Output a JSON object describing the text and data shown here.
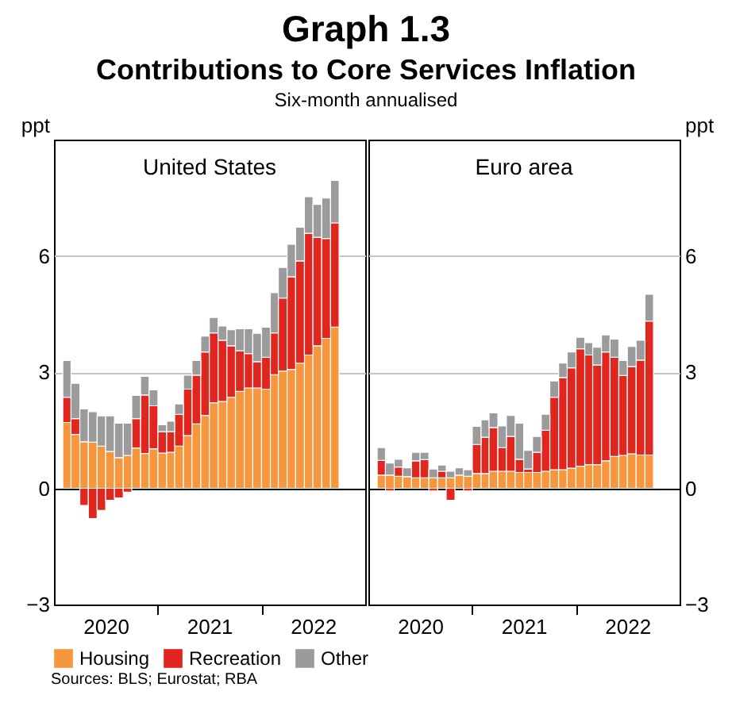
{
  "chart_data": [
    {
      "type": "bar",
      "title": "United States",
      "ylabel": "ppt",
      "stacked": true,
      "grid": "y",
      "legend": "bottom",
      "annotations": [
        "Graph 1.3",
        "Contributions to Core Services Inflation",
        "Six-month annualised",
        "Sources: BLS; Eurostat; RBA"
      ],
      "x": [
        "2020-02",
        "2020-03",
        "2020-04",
        "2020-05",
        "2020-06",
        "2020-07",
        "2020-08",
        "2020-09",
        "2020-10",
        "2020-11",
        "2020-12",
        "2021-01",
        "2021-02",
        "2021-03",
        "2021-04",
        "2021-05",
        "2021-06",
        "2021-07",
        "2021-08",
        "2021-09",
        "2021-10",
        "2021-11",
        "2021-12",
        "2022-01",
        "2022-02",
        "2022-03",
        "2022-04",
        "2022-05",
        "2022-06",
        "2022-07",
        "2022-08",
        "2022-09"
      ],
      "xlim": [
        "2020-01",
        "2023-01"
      ],
      "xticks": [
        {
          "value": "2020-07",
          "label": "2020"
        },
        {
          "value": "2021-01",
          "label": null
        },
        {
          "value": "2021-07",
          "label": "2021"
        },
        {
          "value": "2022-01",
          "label": null
        },
        {
          "value": "2022-07",
          "label": "2022"
        }
      ],
      "ylim": [
        -3,
        9
      ],
      "yticks": [
        -3,
        0,
        3,
        6
      ],
      "series": [
        {
          "name": "Housing",
          "color": "#f7963c",
          "values": [
            1.7,
            1.39,
            1.2,
            1.19,
            1.09,
            0.95,
            0.79,
            0.85,
            1.04,
            0.9,
            1.02,
            0.91,
            0.93,
            1.09,
            1.36,
            1.66,
            1.88,
            2.21,
            2.24,
            2.35,
            2.5,
            2.59,
            2.59,
            2.56,
            2.93,
            3.03,
            3.07,
            3.23,
            3.44,
            3.68,
            3.87,
            4.16
          ]
        },
        {
          "name": "Recreation",
          "color": "#e0261e",
          "values": [
            0.65,
            0.41,
            -0.44,
            -0.78,
            -0.57,
            -0.31,
            -0.25,
            -0.1,
            0.76,
            1.51,
            1.11,
            0.55,
            0.53,
            0.82,
            1.2,
            1.26,
            1.64,
            1.8,
            1.58,
            1.33,
            1.05,
            0.89,
            0.68,
            0.82,
            1.08,
            1.88,
            2.39,
            2.64,
            3.14,
            2.8,
            2.58,
            2.69
          ]
        },
        {
          "name": "Other",
          "color": "#9b9b9b",
          "values": [
            0.95,
            0.91,
            0.85,
            0.79,
            0.78,
            0.92,
            0.89,
            0.83,
            0.6,
            0.48,
            0.41,
            0.18,
            0.27,
            0.27,
            0.36,
            0.38,
            0.41,
            0.4,
            0.37,
            0.41,
            0.57,
            0.64,
            0.73,
            0.78,
            1.04,
            0.79,
            0.84,
            0.87,
            0.95,
            0.85,
            1.04,
            1.1
          ]
        }
      ]
    },
    {
      "type": "bar",
      "title": "Euro area",
      "ylabel": "ppt",
      "stacked": true,
      "grid": "y",
      "legend": "bottom",
      "x": [
        "2020-02",
        "2020-03",
        "2020-04",
        "2020-05",
        "2020-06",
        "2020-07",
        "2020-08",
        "2020-09",
        "2020-10",
        "2020-11",
        "2020-12",
        "2021-01",
        "2021-02",
        "2021-03",
        "2021-04",
        "2021-05",
        "2021-06",
        "2021-07",
        "2021-08",
        "2021-09",
        "2021-10",
        "2021-11",
        "2021-12",
        "2022-01",
        "2022-02",
        "2022-03",
        "2022-04",
        "2022-05",
        "2022-06",
        "2022-07",
        "2022-08",
        "2022-09"
      ],
      "xlim": [
        "2020-01",
        "2023-01"
      ],
      "xticks": [
        {
          "value": "2020-07",
          "label": "2020"
        },
        {
          "value": "2021-01",
          "label": null
        },
        {
          "value": "2021-07",
          "label": "2021"
        },
        {
          "value": "2022-01",
          "label": null
        },
        {
          "value": "2022-07",
          "label": "2022"
        }
      ],
      "ylim": [
        -3,
        9
      ],
      "yticks": [
        -3,
        0,
        3,
        6
      ],
      "series": [
        {
          "name": "Housing",
          "color": "#f7963c",
          "values": [
            0.34,
            0.34,
            0.31,
            0.3,
            0.27,
            0.27,
            0.27,
            0.27,
            0.27,
            0.34,
            0.31,
            0.38,
            0.38,
            0.44,
            0.44,
            0.44,
            0.41,
            0.41,
            0.41,
            0.44,
            0.48,
            0.48,
            0.52,
            0.57,
            0.61,
            0.61,
            0.71,
            0.82,
            0.85,
            0.89,
            0.86,
            0.86
          ]
        },
        {
          "name": "Recreation",
          "color": "#e0261e",
          "values": [
            0.38,
            -0.07,
            0.24,
            null,
            0.44,
            0.47,
            -0.07,
            0.17,
            -0.31,
            null,
            -0.07,
            0.75,
            0.94,
            1.13,
            0.61,
            0.9,
            0.34,
            0.09,
            0.52,
            1.06,
            1.87,
            2.38,
            2.59,
            3.03,
            2.83,
            2.57,
            2.81,
            2.56,
            2.06,
            2.25,
            2.45,
            3.46
          ]
        },
        {
          "name": "Other",
          "color": "#9b9b9b",
          "values": [
            0.33,
            0.31,
            0.2,
            0.23,
            0.22,
            0.19,
            0.23,
            0.16,
            0.17,
            0.19,
            0.17,
            0.47,
            0.45,
            0.38,
            0.56,
            0.54,
            0.93,
            0.48,
            0.41,
            0.41,
            0.42,
            0.37,
            0.41,
            0.3,
            0.32,
            0.46,
            0.44,
            0.47,
            0.39,
            0.52,
            0.51,
            0.69
          ]
        }
      ]
    }
  ]
}
